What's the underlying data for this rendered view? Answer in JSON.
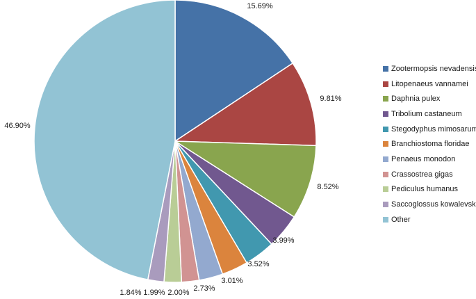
{
  "chart_data": {
    "type": "pie",
    "title": "",
    "start_angle": "12 o'clock",
    "direction": "clockwise",
    "legend_position": "right",
    "slices": [
      {
        "label": "Zootermopsis nevadensis",
        "value": 15.69,
        "display": "15.69%",
        "color": "#4572a7"
      },
      {
        "label": "Litopenaeus vannamei",
        "value": 9.81,
        "display": "9.81%",
        "color": "#aa4643"
      },
      {
        "label": "Daphnia pulex",
        "value": 8.52,
        "display": "8.52%",
        "color": "#89a54e"
      },
      {
        "label": "Tribolium castaneum",
        "value": 3.99,
        "display": "3.99%",
        "color": "#71588f"
      },
      {
        "label": "Stegodyphus mimosarum",
        "value": 3.52,
        "display": "3.52%",
        "color": "#4198af"
      },
      {
        "label": "Branchiostoma floridae",
        "value": 3.01,
        "display": "3.01%",
        "color": "#db843d"
      },
      {
        "label": "Penaeus monodon",
        "value": 2.73,
        "display": "2.73%",
        "color": "#93a9cf"
      },
      {
        "label": "Crassostrea gigas",
        "value": 2.0,
        "display": "2.00%",
        "color": "#d19392"
      },
      {
        "label": "Pediculus humanus",
        "value": 1.99,
        "display": "1.99%",
        "color": "#b9cd96"
      },
      {
        "label": "Saccoglossus kowalevskii",
        "value": 1.84,
        "display": "1.84%",
        "color": "#a99bbd"
      },
      {
        "label": "Other",
        "value": 46.9,
        "display": "46.90%",
        "color": "#92c3d4"
      }
    ]
  }
}
